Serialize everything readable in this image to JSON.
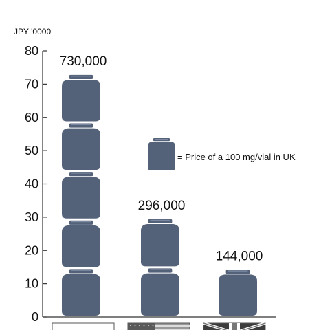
{
  "chart_data": {
    "type": "bar",
    "unit_label": "JPY '0000",
    "ylim": [
      0,
      80
    ],
    "yticks": [
      0,
      10,
      20,
      30,
      40,
      50,
      60,
      70,
      80
    ],
    "categories": [
      "Japan",
      "USA",
      "UK"
    ],
    "values": [
      73,
      29.6,
      14.4
    ],
    "value_labels": [
      "730,000",
      "296,000",
      "144,000"
    ],
    "vials_per_bar": [
      5,
      2,
      1
    ],
    "legend": "= Price of a 100 mg/vial in UK",
    "colors": {
      "vial": "#536179",
      "axis": "#333333"
    }
  }
}
